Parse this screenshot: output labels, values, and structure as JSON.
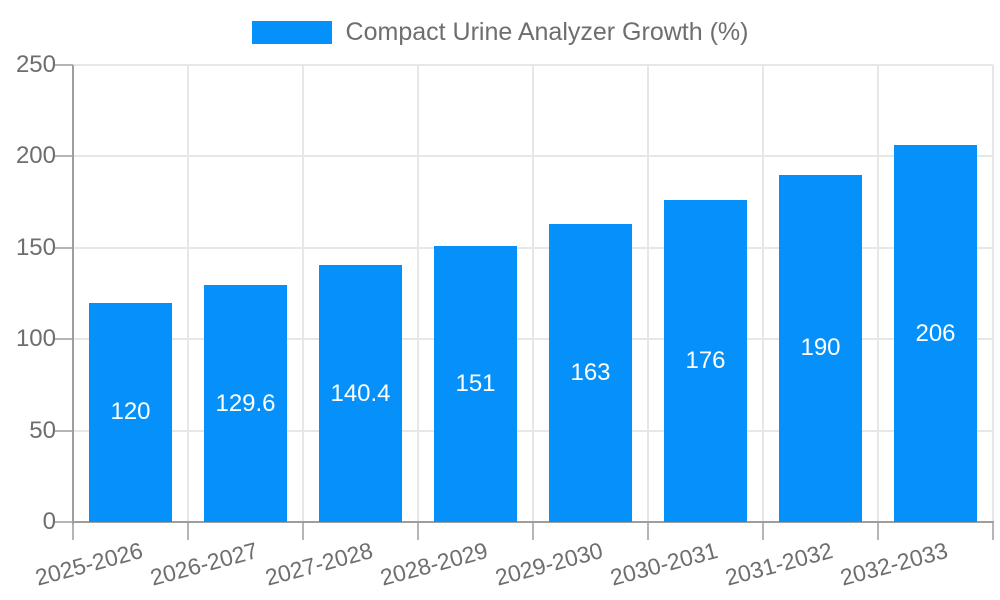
{
  "chart_data": {
    "type": "bar",
    "legend_label": "Compact Urine Analyzer Growth (%)",
    "legend_position": "top",
    "categories": [
      "2025-2026",
      "2026-2027",
      "2027-2028",
      "2028-2029",
      "2029-2030",
      "2030-2031",
      "2031-2032",
      "2032-2033"
    ],
    "values": [
      120,
      129.6,
      140.4,
      151,
      163,
      176,
      190,
      206
    ],
    "value_labels": [
      "120",
      "129.6",
      "140.4",
      "151",
      "163",
      "176",
      "190",
      "206"
    ],
    "xlabel": "",
    "ylabel": "",
    "ylim": [
      0,
      250
    ],
    "yticks": [
      0,
      50,
      100,
      150,
      200,
      250
    ],
    "grid": true,
    "colors": {
      "bar": "#0591f9",
      "bar_value_text": "#ffffff",
      "grid": "#e7e7e7",
      "axis": "#9e9e9e",
      "tick_mark": "#b5b5b5",
      "tick_text": "#6e6e6e",
      "background": "#ffffff"
    }
  }
}
